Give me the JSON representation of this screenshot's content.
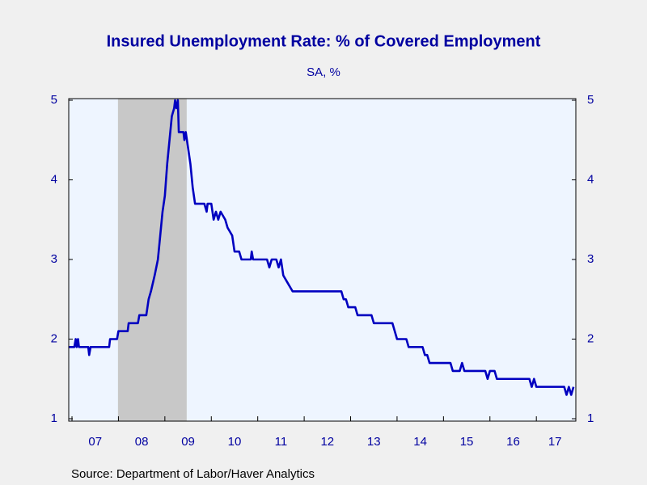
{
  "chart_data": {
    "type": "line",
    "title": "Insured Unemployment Rate: % of Covered Employment",
    "subtitle": "SA, %",
    "source": "Source:  Department of Labor/Haver Analytics",
    "color": "#0000c0",
    "background": "#eef5ff",
    "recession": [
      7.99,
      9.47
    ],
    "recession_color": "#c8c8c8",
    "xlim": [
      6.93,
      17.85
    ],
    "ylim": [
      1,
      5
    ],
    "yticks": [
      1,
      2,
      3,
      4,
      5
    ],
    "year_boundaries": [
      7,
      8,
      9,
      10,
      11,
      12,
      13,
      14,
      15,
      16,
      17
    ],
    "xticks": [
      {
        "value": 7.5,
        "label": "07"
      },
      {
        "value": 8.5,
        "label": "08"
      },
      {
        "value": 9.5,
        "label": "09"
      },
      {
        "value": 10.5,
        "label": "10"
      },
      {
        "value": 11.5,
        "label": "11"
      },
      {
        "value": 12.5,
        "label": "12"
      },
      {
        "value": 13.5,
        "label": "13"
      },
      {
        "value": 14.5,
        "label": "14"
      },
      {
        "value": 15.5,
        "label": "15"
      },
      {
        "value": 16.5,
        "label": "16"
      },
      {
        "value": 17.4,
        "label": "17"
      }
    ],
    "x": [
      6.93,
      7.05,
      7.08,
      7.1,
      7.13,
      7.15,
      7.35,
      7.37,
      7.4,
      7.8,
      7.82,
      7.97,
      8.0,
      8.2,
      8.22,
      8.42,
      8.45,
      8.6,
      8.65,
      8.7,
      8.78,
      8.85,
      8.9,
      8.95,
      9.0,
      9.05,
      9.1,
      9.15,
      9.2,
      9.22,
      9.25,
      9.28,
      9.3,
      9.4,
      9.42,
      9.45,
      9.5,
      9.55,
      9.6,
      9.65,
      9.85,
      9.9,
      9.92,
      10.0,
      10.05,
      10.1,
      10.15,
      10.2,
      10.3,
      10.35,
      10.45,
      10.5,
      10.6,
      10.65,
      10.85,
      10.87,
      10.9,
      11.2,
      11.25,
      11.3,
      11.4,
      11.45,
      11.5,
      11.55,
      11.65,
      11.75,
      12.8,
      12.85,
      12.9,
      12.95,
      13.1,
      13.15,
      13.45,
      13.5,
      13.9,
      13.95,
      14.0,
      14.2,
      14.25,
      14.55,
      14.6,
      14.65,
      14.7,
      15.15,
      15.2,
      15.35,
      15.4,
      15.45,
      15.9,
      15.95,
      16.0,
      16.1,
      16.15,
      16.85,
      16.9,
      16.95,
      17.0,
      17.6,
      17.65,
      17.7,
      17.75,
      17.8
    ],
    "values": [
      1.9,
      1.9,
      2.0,
      1.9,
      2.0,
      1.9,
      1.9,
      1.8,
      1.9,
      1.9,
      2.0,
      2.0,
      2.1,
      2.1,
      2.2,
      2.2,
      2.3,
      2.3,
      2.5,
      2.6,
      2.8,
      3.0,
      3.3,
      3.6,
      3.8,
      4.2,
      4.5,
      4.8,
      4.9,
      5.0,
      4.9,
      5.0,
      4.6,
      4.6,
      4.5,
      4.6,
      4.4,
      4.2,
      3.9,
      3.7,
      3.7,
      3.6,
      3.7,
      3.7,
      3.5,
      3.6,
      3.5,
      3.6,
      3.5,
      3.4,
      3.3,
      3.1,
      3.1,
      3.0,
      3.0,
      3.1,
      3.0,
      3.0,
      2.9,
      3.0,
      3.0,
      2.9,
      3.0,
      2.8,
      2.7,
      2.6,
      2.6,
      2.5,
      2.5,
      2.4,
      2.4,
      2.3,
      2.3,
      2.2,
      2.2,
      2.1,
      2.0,
      2.0,
      1.9,
      1.9,
      1.8,
      1.8,
      1.7,
      1.7,
      1.6,
      1.6,
      1.7,
      1.6,
      1.6,
      1.5,
      1.6,
      1.6,
      1.5,
      1.5,
      1.4,
      1.5,
      1.4,
      1.4,
      1.3,
      1.4,
      1.3,
      1.4
    ]
  }
}
